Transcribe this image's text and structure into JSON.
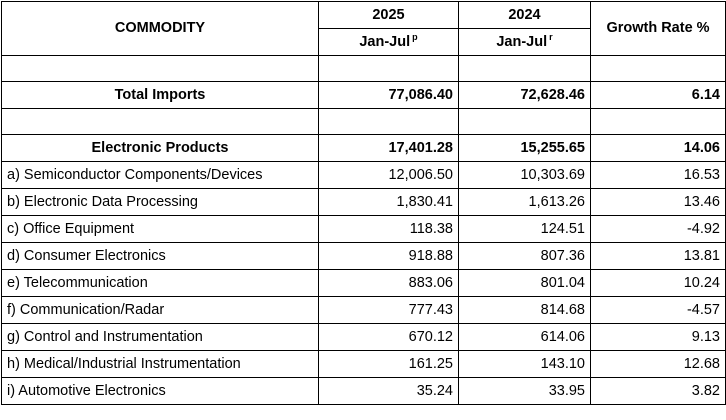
{
  "header": {
    "commodity": "COMMODITY",
    "year1": "2025",
    "year2": "2024",
    "growth": "Growth Rate %",
    "period1": "Jan-Jul",
    "period1_mark": "p",
    "period2": "Jan-Jul",
    "period2_mark": "r"
  },
  "total": {
    "label": "Total Imports",
    "v2025": "77,086.40",
    "v2024": "72,628.46",
    "growth": "6.14"
  },
  "electronic": {
    "label": "Electronic Products",
    "v2025": "17,401.28",
    "v2024": "15,255.65",
    "growth": "14.06"
  },
  "rows": [
    {
      "label": "a) Semiconductor Components/Devices",
      "v2025": "12,006.50",
      "v2024": "10,303.69",
      "growth": "16.53"
    },
    {
      "label": "b) Electronic Data Processing",
      "v2025": "1,830.41",
      "v2024": "1,613.26",
      "growth": "13.46"
    },
    {
      "label": "c) Office Equipment",
      "v2025": "118.38",
      "v2024": "124.51",
      "growth": "-4.92"
    },
    {
      "label": "d) Consumer Electronics",
      "v2025": "918.88",
      "v2024": "807.36",
      "growth": "13.81"
    },
    {
      "label": "e) Telecommunication",
      "v2025": "883.06",
      "v2024": "801.04",
      "growth": "10.24"
    },
    {
      "label": "f) Communication/Radar",
      "v2025": "777.43",
      "v2024": "814.68",
      "growth": "-4.57"
    },
    {
      "label": "g) Control and Instrumentation",
      "v2025": "670.12",
      "v2024": "614.06",
      "growth": "9.13"
    },
    {
      "label": "h) Medical/Industrial Instrumentation",
      "v2025": "161.25",
      "v2024": "143.10",
      "growth": "12.68"
    },
    {
      "label": "i) Automotive Electronics",
      "v2025": "35.24",
      "v2024": "33.95",
      "growth": "3.82"
    }
  ]
}
